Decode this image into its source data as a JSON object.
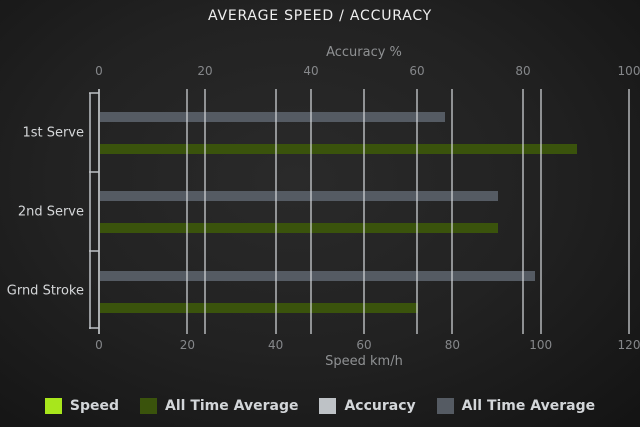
{
  "chart_data": {
    "type": "bar",
    "orientation": "horizontal",
    "title": "AVERAGE SPEED / ACCURACY",
    "categories": [
      "1st Serve",
      "2nd Serve",
      "Grnd Stroke"
    ],
    "series": [
      {
        "name": "Speed",
        "axis": "bottom",
        "color": "#a8e61c",
        "values": [
          null,
          null,
          null
        ]
      },
      {
        "name": "All Time Average",
        "axis": "bottom",
        "color": "#3a530c",
        "values": [
          108,
          90,
          72
        ]
      },
      {
        "name": "Accuracy",
        "axis": "top",
        "color": "#bec2c6",
        "values": [
          null,
          null,
          null
        ]
      },
      {
        "name": "All Time Average",
        "axis": "top",
        "color": "#555b63",
        "values": [
          65,
          75,
          82
        ]
      }
    ],
    "axes": {
      "top": {
        "label": "Accuracy %",
        "min": 0,
        "max": 100,
        "ticks": [
          0,
          20,
          40,
          60,
          80,
          100
        ]
      },
      "bottom": {
        "label": "Speed km/h",
        "min": 0,
        "max": 120,
        "ticks": [
          0,
          20,
          40,
          60,
          80,
          100,
          120
        ]
      }
    },
    "legend": {
      "position": "bottom",
      "entries": [
        {
          "label": "Speed",
          "color": "#a8e61c"
        },
        {
          "label": "All Time Average",
          "color": "#3a530c"
        },
        {
          "label": "Accuracy",
          "color": "#bec2c6"
        },
        {
          "label": "All Time Average",
          "color": "#555b63"
        }
      ]
    },
    "grid": true
  }
}
